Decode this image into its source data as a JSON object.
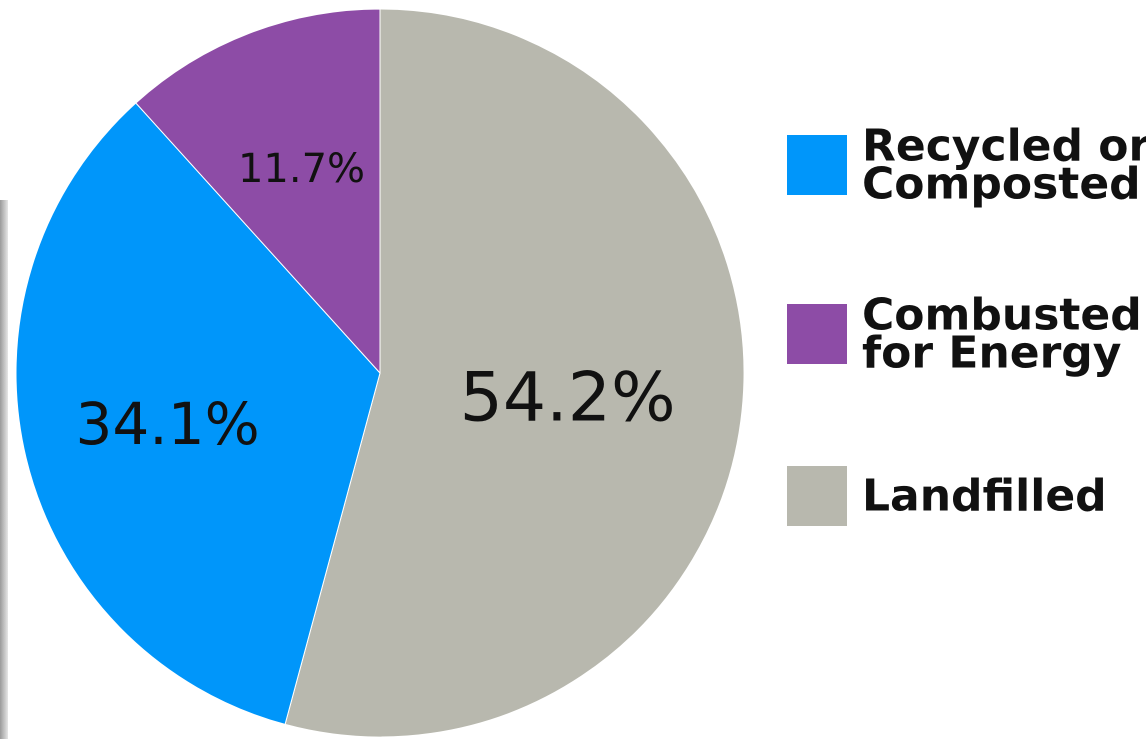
{
  "chart_data": {
    "type": "pie",
    "title": "",
    "slices": [
      {
        "label": "Landfilled",
        "value": 54.2,
        "display": "54.2%",
        "color": "#b8b8ae"
      },
      {
        "label": "Recycled or Composted",
        "value": 34.1,
        "display": "34.1%",
        "color": "#0096fa"
      },
      {
        "label": "Combusted for Energy",
        "value": 11.7,
        "display": "11.7%",
        "color": "#8d4ca6"
      }
    ],
    "start_angle_deg": 0,
    "direction": "clockwise",
    "legend": {
      "position": "right",
      "items": [
        {
          "lines": [
            "Recycled or",
            "Composted"
          ],
          "color": "#0096fa"
        },
        {
          "lines": [
            "Combusted",
            "for Energy"
          ],
          "color": "#8d4ca6"
        },
        {
          "lines": [
            "Landfilled"
          ],
          "color": "#b8b8ae"
        }
      ]
    }
  }
}
